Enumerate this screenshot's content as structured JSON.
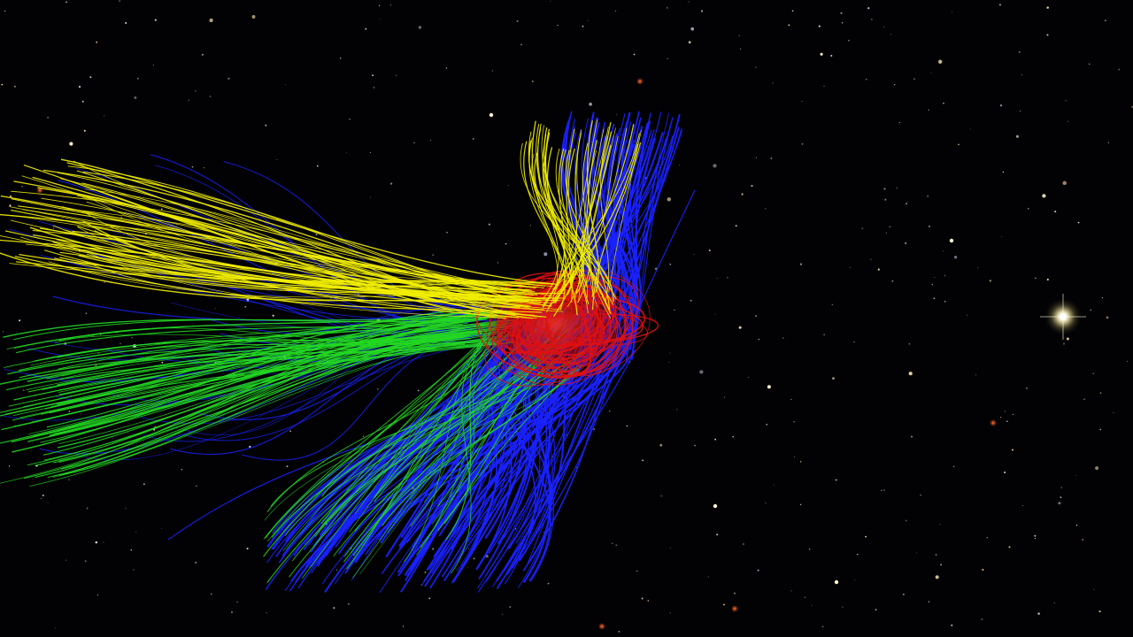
{
  "scene": {
    "background": "#020204",
    "description_visible": false
  },
  "field_lines": {
    "colors": {
      "open_north": "#f2ee00",
      "closed": "#22d822",
      "open_south": "#1a22ff",
      "core": "#e01010"
    }
  },
  "bright_star": {
    "color": "#fff8d8"
  }
}
